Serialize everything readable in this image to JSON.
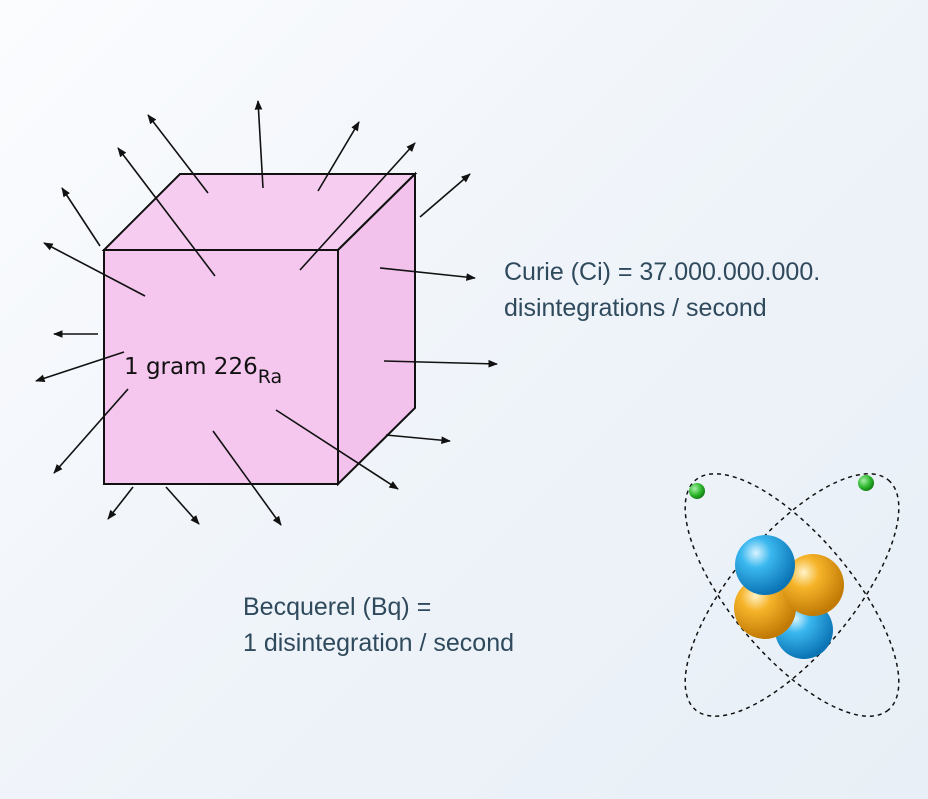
{
  "sample": {
    "label": "1 gram 226",
    "element": "Ra"
  },
  "curie": {
    "line1": "Curie (Ci) = 37.000.000.000.",
    "line2": "disintegrations / second"
  },
  "becquerel": {
    "line1": "Becquerel (Bq) =",
    "line2": "1 disintegration / second"
  },
  "colors": {
    "cube_fill": "#f5c6ef",
    "cube_edge": "#111111",
    "text": "#2f4a5c",
    "proton_orange": "#f2a81d",
    "neutron_blue": "#1aa3e0",
    "electron_green": "#2db82d"
  },
  "icons": [
    "arrow-icon",
    "atom-icon"
  ]
}
